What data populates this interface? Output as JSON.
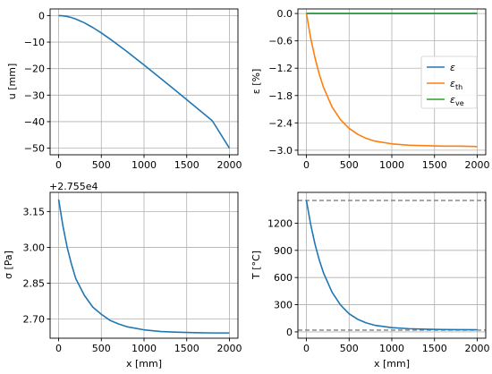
{
  "colors": {
    "blue": "#1f77b4",
    "orange": "#ff7f0e",
    "green": "#2ca02c",
    "grey": "#808080"
  },
  "chart_data": [
    {
      "id": "displacement",
      "type": "line",
      "title": "",
      "xlabel": "",
      "ylabel": "u [mm]",
      "xlim": [
        -100,
        2100
      ],
      "ylim": [
        -52.5,
        2.5
      ],
      "xticks": [
        0,
        500,
        1000,
        1500,
        2000
      ],
      "yticks": [
        0,
        -10,
        -20,
        -30,
        -40,
        -50
      ],
      "xtick_labels": [
        "0",
        "500",
        "1000",
        "1500",
        "2000"
      ],
      "ytick_labels": [
        "0",
        "−10",
        "−20",
        "−30",
        "−40",
        "−50"
      ],
      "grid": true,
      "series": [
        {
          "name": "",
          "color": "#1f77b4",
          "x": [
            0,
            50,
            100,
            150,
            200,
            300,
            400,
            500,
            600,
            800,
            1000,
            1200,
            1400,
            1600,
            1800,
            2000
          ],
          "y": [
            0,
            -0.09,
            -0.35,
            -0.76,
            -1.29,
            -2.71,
            -4.5,
            -6.55,
            -8.78,
            -13.57,
            -18.62,
            -23.81,
            -29.06,
            -34.36,
            -39.68,
            -50.0
          ]
        }
      ]
    },
    {
      "id": "strain",
      "type": "line",
      "title": "",
      "xlabel": "",
      "ylabel": "ε [%]",
      "xlim": [
        -100,
        2100
      ],
      "ylim": [
        -3.1,
        0.1
      ],
      "xticks": [
        0,
        500,
        1000,
        1500,
        2000
      ],
      "yticks": [
        0.0,
        -0.6,
        -1.2,
        -1.8,
        -2.4,
        -3.0
      ],
      "xtick_labels": [
        "0",
        "500",
        "1000",
        "1500",
        "2000"
      ],
      "ytick_labels": [
        "0.0",
        "−0.6",
        "−1.2",
        "−1.8",
        "−2.4",
        "−3.0"
      ],
      "grid": true,
      "legend": {
        "placement": "center-right",
        "entries": [
          {
            "base": "ε",
            "sub": "",
            "color": "#1f77b4"
          },
          {
            "base": "ε",
            "sub": "th",
            "color": "#ff7f0e"
          },
          {
            "base": "ε",
            "sub": "ve",
            "color": "#2ca02c"
          }
        ]
      },
      "series": [
        {
          "name": "ε",
          "color": "#1f77b4",
          "x": [
            0,
            2000
          ],
          "y": [
            0,
            0
          ]
        },
        {
          "name": "εth",
          "color": "#ff7f0e",
          "x": [
            0,
            50,
            100,
            150,
            200,
            300,
            400,
            500,
            600,
            700,
            800,
            1000,
            1200,
            1400,
            1600,
            1800,
            2000
          ],
          "y": [
            0,
            -0.54,
            -0.97,
            -1.33,
            -1.62,
            -2.05,
            -2.33,
            -2.52,
            -2.65,
            -2.74,
            -2.8,
            -2.86,
            -2.89,
            -2.9,
            -2.91,
            -2.91,
            -2.92
          ]
        },
        {
          "name": "εve",
          "color": "#2ca02c",
          "x": [
            0,
            2000
          ],
          "y": [
            0,
            0
          ]
        }
      ]
    },
    {
      "id": "stress",
      "type": "line",
      "title": "",
      "xlabel": "x [mm]",
      "ylabel": "σ [Pa]",
      "offset_text": "+2.755e4",
      "xlim": [
        -100,
        2100
      ],
      "ylim": [
        2.62,
        3.23
      ],
      "xticks": [
        0,
        500,
        1000,
        1500,
        2000
      ],
      "yticks": [
        2.7,
        2.85,
        3.0,
        3.15
      ],
      "xtick_labels": [
        "0",
        "500",
        "1000",
        "1500",
        "2000"
      ],
      "ytick_labels": [
        "2.70",
        "2.85",
        "3.00",
        "3.15"
      ],
      "grid": true,
      "series": [
        {
          "name": "",
          "color": "#1f77b4",
          "x": [
            0,
            50,
            100,
            150,
            200,
            300,
            400,
            500,
            600,
            700,
            800,
            1000,
            1200,
            1400,
            1600,
            1800,
            2000
          ],
          "y": [
            3.2,
            3.09,
            3.0,
            2.93,
            2.87,
            2.8,
            2.75,
            2.72,
            2.695,
            2.68,
            2.668,
            2.655,
            2.648,
            2.645,
            2.643,
            2.642,
            2.642
          ]
        }
      ]
    },
    {
      "id": "temperature",
      "type": "line",
      "title": "",
      "xlabel": "x [mm]",
      "ylabel": "T [°C]",
      "xlim": [
        -100,
        2100
      ],
      "ylim": [
        -70,
        1540
      ],
      "xticks": [
        0,
        500,
        1000,
        1500,
        2000
      ],
      "yticks": [
        0,
        300,
        600,
        900,
        1200
      ],
      "xtick_labels": [
        "0",
        "500",
        "1000",
        "1500",
        "2000"
      ],
      "ytick_labels": [
        "0",
        "300",
        "600",
        "900",
        "1200"
      ],
      "grid": true,
      "reference_lines": [
        {
          "y": 1450,
          "color": "#808080",
          "style": "dashed"
        },
        {
          "y": 20,
          "color": "#808080",
          "style": "dashed"
        }
      ],
      "series": [
        {
          "name": "",
          "color": "#1f77b4",
          "x": [
            0,
            50,
            100,
            150,
            200,
            300,
            400,
            500,
            600,
            700,
            800,
            1000,
            1200,
            1400,
            1600,
            1800,
            2000
          ],
          "y": [
            1450,
            1185,
            970,
            795,
            651,
            438,
            296,
            200,
            139,
            99,
            73,
            47,
            35,
            29,
            26,
            24,
            23
          ]
        }
      ]
    }
  ]
}
